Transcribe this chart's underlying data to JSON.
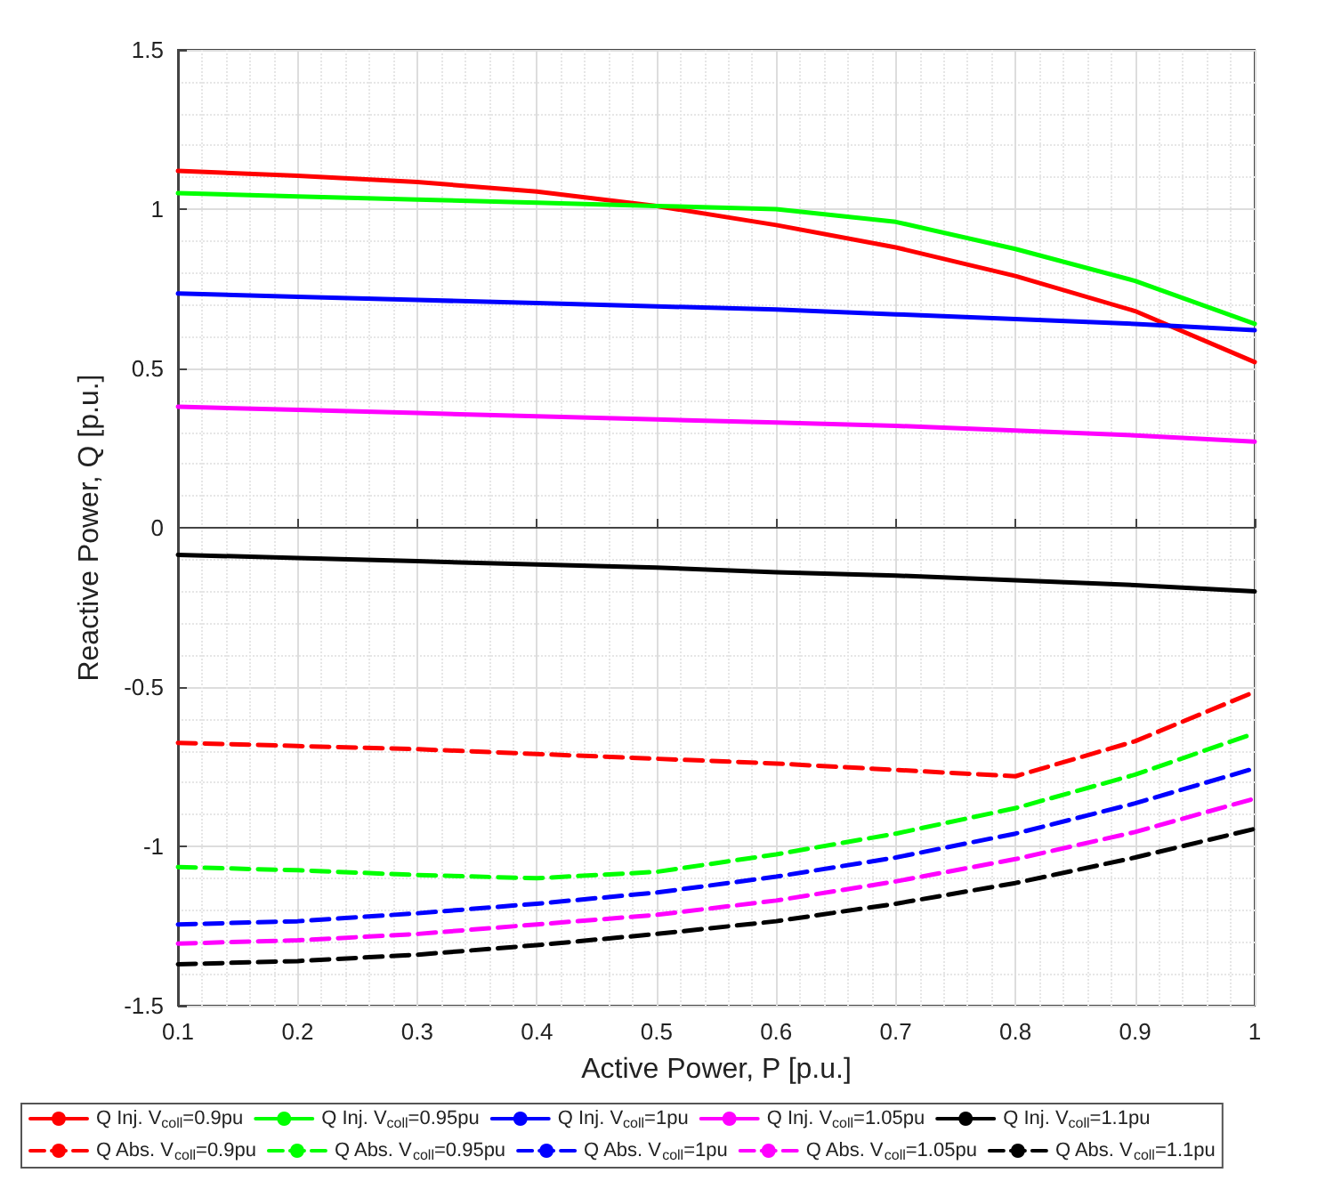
{
  "chart_data": {
    "type": "line",
    "xlabel": "Active Power, P [p.u.]",
    "ylabel": "Reactive Power, Q [p.u.]",
    "x": [
      0.1,
      0.2,
      0.3,
      0.4,
      0.5,
      0.6,
      0.7,
      0.8,
      0.9,
      1
    ],
    "xlim": [
      0.1,
      1
    ],
    "xticks": [
      0.1,
      0.2,
      0.3,
      0.4,
      0.5,
      0.6,
      0.7,
      0.8,
      0.9,
      1
    ],
    "ylim": [
      -1.5,
      1.5
    ],
    "yticks": [
      -1.5,
      -1,
      -0.5,
      0,
      0.5,
      1,
      1.5
    ],
    "grid": true,
    "legend": "bottom",
    "marker": "none",
    "series": [
      {
        "name": "Q Inj. V$_{coll}$=0.9pu",
        "color": "#ff0000",
        "line_style": "solid",
        "values": [
          1.12,
          1.105,
          1.085,
          1.055,
          1.01,
          0.95,
          0.88,
          0.79,
          0.68,
          0.52
        ]
      },
      {
        "name": "Q Inj. V$_{coll}$=0.95pu",
        "color": "#00ff00",
        "line_style": "solid",
        "values": [
          1.05,
          1.04,
          1.03,
          1.02,
          1.01,
          1.0,
          0.96,
          0.875,
          0.775,
          0.64
        ]
      },
      {
        "name": "Q Inj. V$_{coll}$=1pu",
        "color": "#0000ff",
        "line_style": "solid",
        "values": [
          0.735,
          0.725,
          0.715,
          0.705,
          0.695,
          0.685,
          0.67,
          0.655,
          0.64,
          0.62
        ]
      },
      {
        "name": "Q Inj. V$_{coll}$=1.05pu",
        "color": "#ff00ff",
        "line_style": "solid",
        "values": [
          0.38,
          0.37,
          0.36,
          0.35,
          0.34,
          0.33,
          0.32,
          0.305,
          0.29,
          0.27
        ]
      },
      {
        "name": "Q Inj. V$_{coll}$=1.1pu",
        "color": "#000000",
        "line_style": "solid",
        "values": [
          -0.085,
          -0.095,
          -0.105,
          -0.115,
          -0.125,
          -0.14,
          -0.15,
          -0.165,
          -0.18,
          -0.2
        ]
      },
      {
        "name": "Q Abs. V$_{coll}$=0.9pu",
        "color": "#ff0000",
        "line_style": "dashed",
        "values": [
          -0.675,
          -0.685,
          -0.695,
          -0.71,
          -0.725,
          -0.74,
          -0.76,
          -0.78,
          -0.67,
          -0.515
        ]
      },
      {
        "name": "Q Abs. V$_{coll}$=0.95pu",
        "color": "#00ff00",
        "line_style": "dashed",
        "values": [
          -1.065,
          -1.075,
          -1.09,
          -1.1,
          -1.08,
          -1.025,
          -0.96,
          -0.88,
          -0.775,
          -0.645
        ]
      },
      {
        "name": "Q Abs. V$_{coll}$=1pu",
        "color": "#0000ff",
        "line_style": "dashed",
        "values": [
          -1.245,
          -1.235,
          -1.21,
          -1.18,
          -1.145,
          -1.095,
          -1.035,
          -0.96,
          -0.865,
          -0.755
        ]
      },
      {
        "name": "Q Abs. V$_{coll}$=1.05pu",
        "color": "#ff00ff",
        "line_style": "dashed",
        "values": [
          -1.305,
          -1.295,
          -1.275,
          -1.245,
          -1.215,
          -1.17,
          -1.11,
          -1.04,
          -0.955,
          -0.85
        ]
      },
      {
        "name": "Q Abs. V$_{coll}$=1.1pu",
        "color": "#000000",
        "line_style": "dashed",
        "values": [
          -1.37,
          -1.36,
          -1.34,
          -1.31,
          -1.275,
          -1.235,
          -1.18,
          -1.115,
          -1.035,
          -0.945
        ]
      }
    ]
  }
}
